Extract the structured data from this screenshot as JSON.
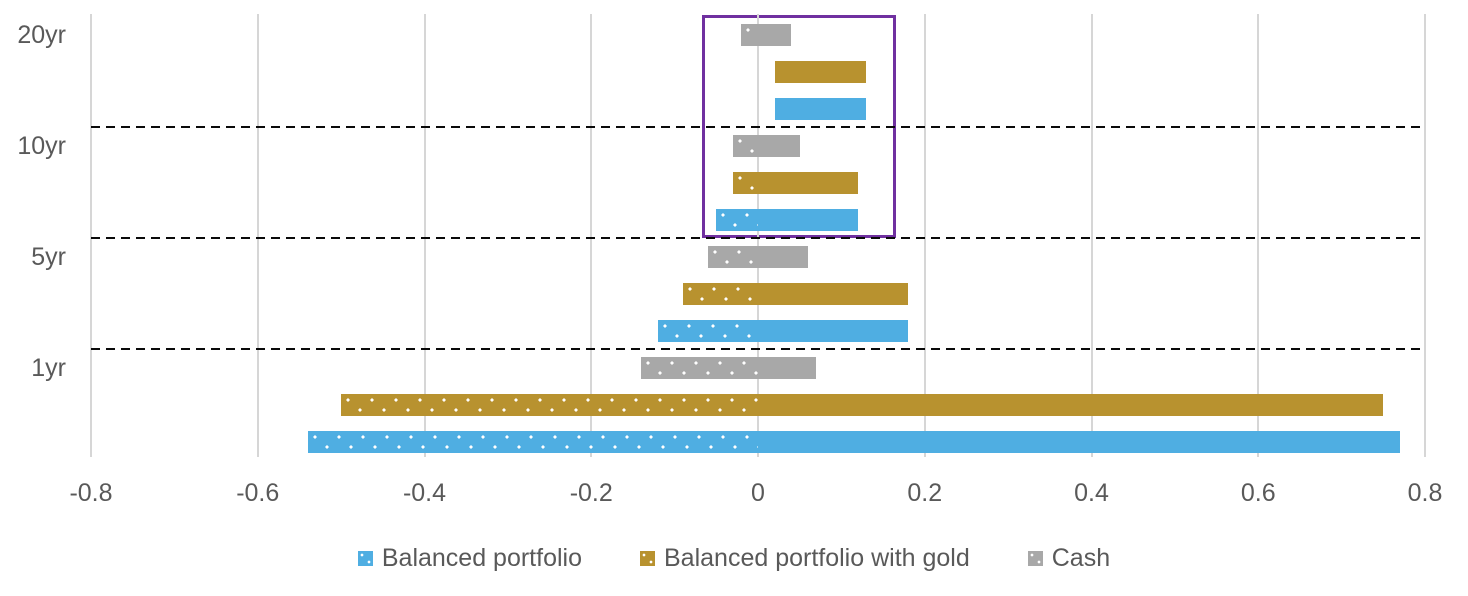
{
  "chart_data": {
    "type": "bar",
    "subtype": "horizontal-floating-range-grouped",
    "title": "",
    "xlabel": "",
    "ylabel": "",
    "xlim": [
      -0.8,
      0.8
    ],
    "x_ticks": [
      "-0.8",
      "-0.6",
      "-0.4",
      "-0.2",
      "0",
      "0.2",
      "0.4",
      "0.6",
      "0.8"
    ],
    "x_tick_values": [
      -0.8,
      -0.6,
      -0.4,
      -0.2,
      0,
      0.2,
      0.4,
      0.6,
      0.8
    ],
    "grid": "vertical-light-gray",
    "categories": [
      "20yr",
      "10yr",
      "5yr",
      "1yr"
    ],
    "series_meta": {
      "balanced": {
        "label": "Balanced portfolio",
        "color": "#4FAEE2"
      },
      "gold": {
        "label": "Balanced portfolio with gold",
        "color": "#B8922F"
      },
      "cash": {
        "label": "Cash",
        "color": "#A8A8A8"
      }
    },
    "legend": {
      "position": "bottom-center",
      "order": [
        "balanced",
        "gold",
        "cash"
      ]
    },
    "pattern_note": "portion of each range bar below 0 is rendered with white polka-dot pattern; portion above 0 is solid",
    "groups": [
      {
        "label": "20yr",
        "bars": [
          {
            "series": "cash",
            "min": -0.02,
            "max": 0.04
          },
          {
            "series": "gold",
            "min": 0.02,
            "max": 0.13
          },
          {
            "series": "balanced",
            "min": 0.02,
            "max": 0.13
          }
        ]
      },
      {
        "label": "10yr",
        "bars": [
          {
            "series": "cash",
            "min": -0.03,
            "max": 0.05
          },
          {
            "series": "gold",
            "min": -0.03,
            "max": 0.12
          },
          {
            "series": "balanced",
            "min": -0.05,
            "max": 0.12
          }
        ]
      },
      {
        "label": "5yr",
        "bars": [
          {
            "series": "cash",
            "min": -0.06,
            "max": 0.06
          },
          {
            "series": "gold",
            "min": -0.09,
            "max": 0.18
          },
          {
            "series": "balanced",
            "min": -0.12,
            "max": 0.18
          }
        ]
      },
      {
        "label": "1yr",
        "bars": [
          {
            "series": "cash",
            "min": -0.14,
            "max": 0.07
          },
          {
            "series": "gold",
            "min": -0.5,
            "max": 0.75
          },
          {
            "series": "balanced",
            "min": -0.54,
            "max": 0.77
          }
        ]
      }
    ],
    "annotation_box": {
      "color": "#7030A0",
      "covers_groups": [
        "20yr",
        "10yr"
      ],
      "x_min": -0.065,
      "x_max": 0.161
    },
    "group_separators": "black dashed horizontal lines between year groups"
  }
}
